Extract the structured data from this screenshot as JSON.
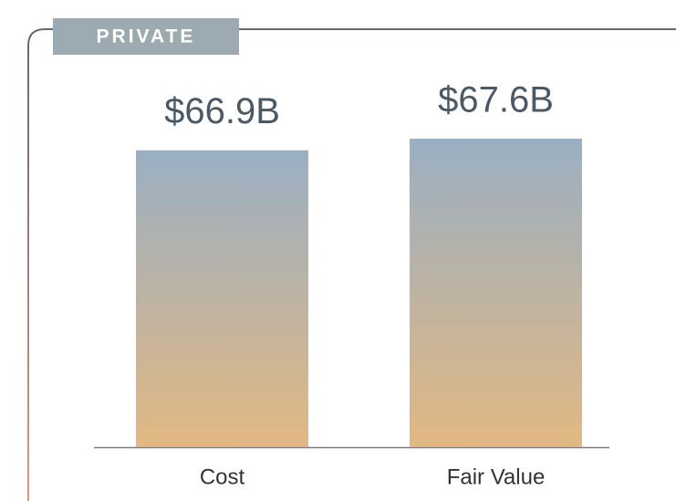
{
  "chart_data": {
    "type": "bar",
    "title": "PRIVATE",
    "categories": [
      "Cost",
      "Fair Value"
    ],
    "values": [
      66.9,
      67.6
    ],
    "value_labels": [
      "$66.9B",
      "$67.6B"
    ],
    "color": [
      "#9aafc3",
      "#e2b882"
    ],
    "ylim": [
      49,
      72
    ]
  }
}
